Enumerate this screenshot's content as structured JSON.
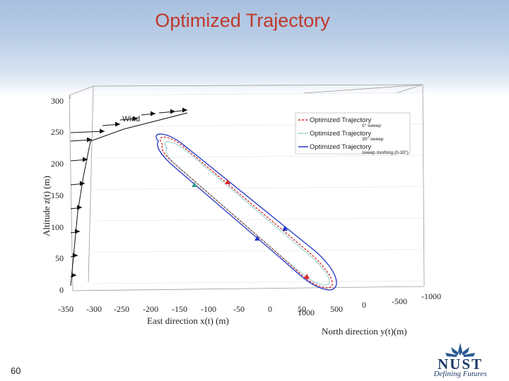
{
  "slide": {
    "title": "Optimized Trajectory",
    "page_number": "60"
  },
  "logo": {
    "name": "NUST",
    "tagline": "Defining Futures"
  },
  "chart_data": {
    "type": "line",
    "projection": "3d",
    "title": "",
    "xlabel": "East direction x(t) (m)",
    "ylabel": "North direction y(t)(m)",
    "zlabel": "Altitude z(t) (m)",
    "x_ticks": [
      "-350",
      "-300",
      "-250",
      "-200",
      "-150",
      "-100",
      "-50",
      "0",
      "50"
    ],
    "y_ticks": [
      "1000",
      "500",
      "0",
      "-500",
      "-1000"
    ],
    "z_ticks": [
      "300",
      "250",
      "200",
      "150",
      "100",
      "50",
      "0"
    ],
    "wind_label": "Wind",
    "legend_position": "top-right",
    "series": [
      {
        "name": "Optimized Trajectory",
        "sub": "0° sweep",
        "color": "#d62b2b",
        "dash": "3,2"
      },
      {
        "name": "Optimized Trajectory",
        "sub": "30° sweep",
        "color": "#2a9d8f",
        "dash": "1,1.5"
      },
      {
        "name": "Optimized Trajectory",
        "sub": "sweep morhing (0-30°)",
        "color": "#2236c4",
        "dash": ""
      }
    ]
  }
}
